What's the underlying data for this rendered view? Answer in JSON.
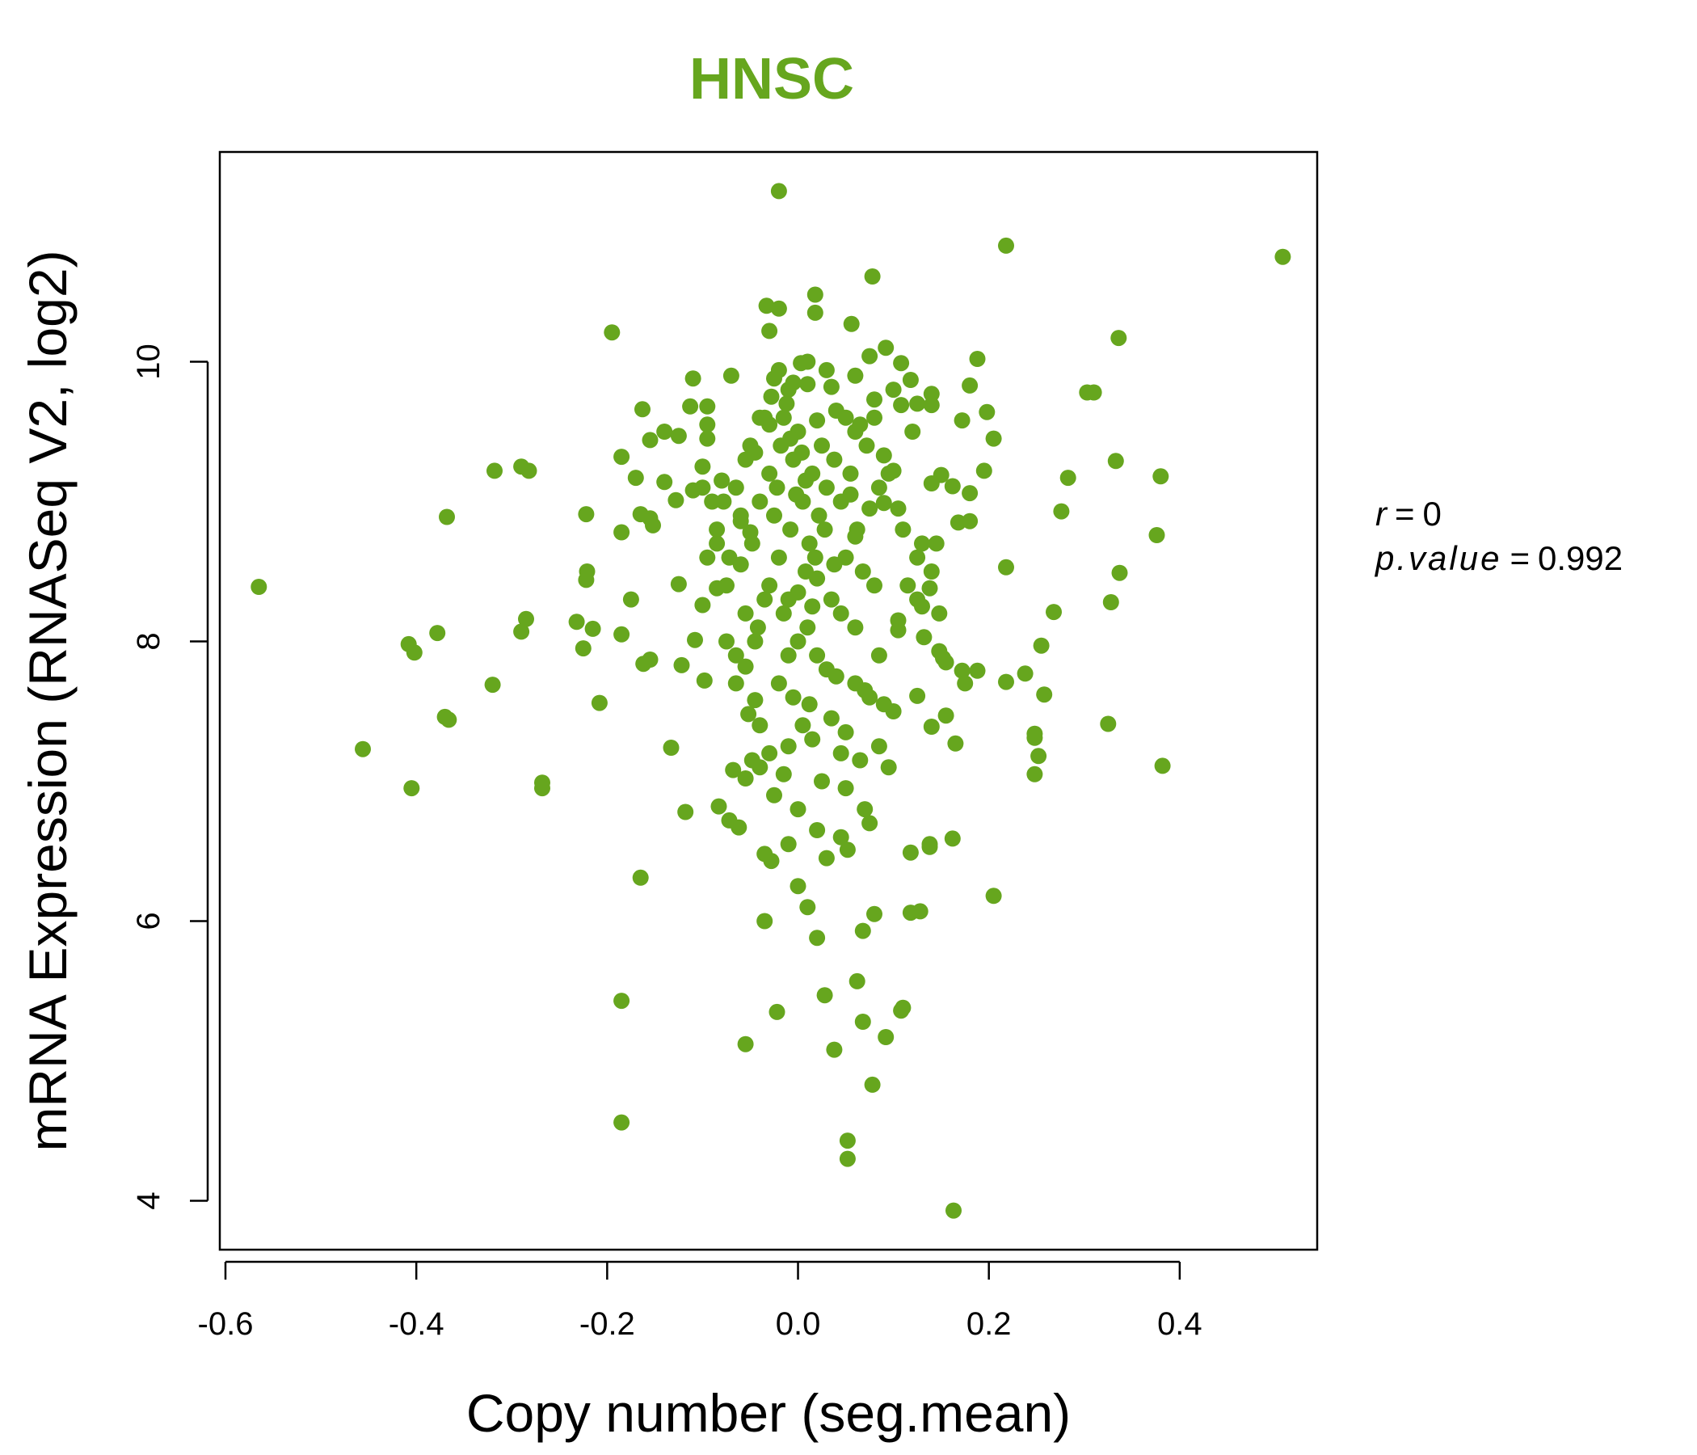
{
  "chart_data": {
    "type": "scatter",
    "title": "HNSC",
    "xlabel": "Copy number (seg.mean)",
    "ylabel": "mRNA Expression (RNASeq V2, log2)",
    "xlim": [
      -0.6,
      0.55
    ],
    "ylim": [
      3.65,
      11.5
    ],
    "xticks": [
      -0.6,
      -0.4,
      -0.2,
      0.0,
      0.2,
      0.4
    ],
    "xtick_labels": [
      "-0.6",
      "-0.4",
      "-0.2",
      "0.0",
      "0.2",
      "0.4"
    ],
    "yticks": [
      4,
      6,
      8,
      10
    ],
    "ytick_labels": [
      "4",
      "6",
      "8",
      "10"
    ],
    "grid": false,
    "colors": {
      "points": "#66a61e",
      "title": "#66a61e",
      "axis": "#000000"
    },
    "annotations": {
      "r_label": "r",
      "r_value": "0",
      "p_label": "p.value",
      "p_value": "0.992",
      "equals": "="
    },
    "series": [
      {
        "points": [
          [
            -0.02,
            11.22
          ],
          [
            0.218,
            10.83
          ],
          [
            0.508,
            10.75
          ],
          [
            0.078,
            10.61
          ],
          [
            -0.033,
            10.4
          ],
          [
            -0.02,
            10.38
          ],
          [
            0.018,
            10.48
          ],
          [
            0.018,
            10.35
          ],
          [
            0.056,
            10.27
          ],
          [
            -0.195,
            10.21
          ],
          [
            -0.03,
            10.22
          ],
          [
            0.336,
            10.17
          ],
          [
            0.092,
            10.1
          ],
          [
            0.075,
            10.04
          ],
          [
            0.188,
            10.02
          ],
          [
            -0.02,
            9.94
          ],
          [
            0.003,
            9.99
          ],
          [
            0.03,
            9.94
          ],
          [
            0.108,
            9.99
          ],
          [
            -0.11,
            9.88
          ],
          [
            -0.07,
            9.9
          ],
          [
            -0.025,
            9.88
          ],
          [
            0.06,
            9.9
          ],
          [
            0.118,
            9.87
          ],
          [
            0.18,
            9.83
          ],
          [
            0.31,
            9.78
          ],
          [
            0.303,
            9.78
          ],
          [
            0.14,
            9.77
          ],
          [
            -0.113,
            9.68
          ],
          [
            -0.095,
            9.68
          ],
          [
            -0.01,
            9.8
          ],
          [
            0.01,
            9.84
          ],
          [
            0.035,
            9.82
          ],
          [
            0.08,
            9.73
          ],
          [
            0.108,
            9.69
          ],
          [
            0.125,
            9.7
          ],
          [
            0.14,
            9.69
          ],
          [
            0.198,
            9.64
          ],
          [
            -0.163,
            9.66
          ],
          [
            -0.04,
            9.6
          ],
          [
            0.02,
            9.58
          ],
          [
            0.05,
            9.6
          ],
          [
            0.172,
            9.58
          ],
          [
            -0.095,
            9.55
          ],
          [
            0.08,
            9.6
          ],
          [
            -0.14,
            9.5
          ],
          [
            -0.155,
            9.44
          ],
          [
            -0.125,
            9.47
          ],
          [
            -0.095,
            9.45
          ],
          [
            0.06,
            9.5
          ],
          [
            0.205,
            9.45
          ],
          [
            -0.185,
            9.32
          ],
          [
            -0.05,
            9.4
          ],
          [
            0.09,
            9.33
          ],
          [
            0.333,
            9.29
          ],
          [
            -0.318,
            9.22
          ],
          [
            -0.29,
            9.25
          ],
          [
            -0.282,
            9.22
          ],
          [
            -0.17,
            9.17
          ],
          [
            0.1,
            9.22
          ],
          [
            0.15,
            9.19
          ],
          [
            0.195,
            9.22
          ],
          [
            0.283,
            9.17
          ],
          [
            0.38,
            9.18
          ],
          [
            -0.14,
            9.14
          ],
          [
            -0.11,
            9.08
          ],
          [
            -0.1,
            9.1
          ],
          [
            -0.08,
            9.15
          ],
          [
            0.14,
            9.13
          ],
          [
            0.18,
            9.06
          ],
          [
            0.162,
            9.11
          ],
          [
            -0.128,
            9.01
          ],
          [
            -0.368,
            8.89
          ],
          [
            -0.222,
            8.91
          ],
          [
            -0.165,
            8.91
          ],
          [
            -0.155,
            8.88
          ],
          [
            -0.152,
            8.83
          ],
          [
            -0.06,
            8.86
          ],
          [
            0.09,
            8.99
          ],
          [
            0.105,
            8.95
          ],
          [
            0.168,
            8.85
          ],
          [
            0.18,
            8.86
          ],
          [
            0.276,
            8.93
          ],
          [
            -0.185,
            8.78
          ],
          [
            -0.05,
            8.78
          ],
          [
            0.06,
            8.75
          ],
          [
            0.13,
            8.7
          ],
          [
            0.145,
            8.7
          ],
          [
            0.376,
            8.76
          ],
          [
            -0.085,
            8.7
          ],
          [
            -0.565,
            8.39
          ],
          [
            -0.222,
            8.44
          ],
          [
            -0.221,
            8.5
          ],
          [
            -0.125,
            8.41
          ],
          [
            -0.085,
            8.38
          ],
          [
            0.138,
            8.38
          ],
          [
            0.218,
            8.53
          ],
          [
            0.337,
            8.49
          ],
          [
            -0.175,
            8.3
          ],
          [
            0.125,
            8.3
          ],
          [
            0.328,
            8.28
          ],
          [
            -0.1,
            8.26
          ],
          [
            0.268,
            8.21
          ],
          [
            -0.285,
            8.16
          ],
          [
            -0.232,
            8.14
          ],
          [
            -0.215,
            8.09
          ],
          [
            -0.29,
            8.07
          ],
          [
            -0.378,
            8.06
          ],
          [
            -0.185,
            8.05
          ],
          [
            -0.108,
            8.01
          ],
          [
            -0.075,
            8.0
          ],
          [
            0.105,
            8.08
          ],
          [
            0.132,
            8.03
          ],
          [
            -0.408,
            7.98
          ],
          [
            -0.402,
            7.92
          ],
          [
            -0.225,
            7.95
          ],
          [
            0.148,
            7.93
          ],
          [
            0.152,
            7.88
          ],
          [
            0.155,
            7.85
          ],
          [
            0.255,
            7.97
          ],
          [
            -0.155,
            7.87
          ],
          [
            -0.162,
            7.84
          ],
          [
            -0.122,
            7.83
          ],
          [
            -0.055,
            7.82
          ],
          [
            0.172,
            7.79
          ],
          [
            0.188,
            7.79
          ],
          [
            0.238,
            7.77
          ],
          [
            0.175,
            7.7
          ],
          [
            0.218,
            7.71
          ],
          [
            -0.098,
            7.72
          ],
          [
            -0.065,
            7.7
          ],
          [
            -0.32,
            7.69
          ],
          [
            0.258,
            7.62
          ],
          [
            -0.208,
            7.56
          ],
          [
            -0.045,
            7.58
          ],
          [
            0.125,
            7.61
          ],
          [
            -0.37,
            7.46
          ],
          [
            -0.366,
            7.44
          ],
          [
            -0.052,
            7.48
          ],
          [
            0.155,
            7.47
          ],
          [
            0.14,
            7.39
          ],
          [
            0.325,
            7.41
          ],
          [
            0.248,
            7.34
          ],
          [
            0.248,
            7.31
          ],
          [
            -0.133,
            7.24
          ],
          [
            -0.456,
            7.23
          ],
          [
            0.165,
            7.27
          ],
          [
            0.252,
            7.18
          ],
          [
            -0.048,
            7.15
          ],
          [
            -0.04,
            7.1
          ],
          [
            -0.068,
            7.08
          ],
          [
            -0.055,
            7.02
          ],
          [
            0.382,
            7.11
          ],
          [
            0.248,
            7.05
          ],
          [
            -0.268,
            6.99
          ],
          [
            -0.268,
            6.95
          ],
          [
            -0.405,
            6.95
          ],
          [
            -0.083,
            6.82
          ],
          [
            -0.118,
            6.78
          ],
          [
            -0.072,
            6.72
          ],
          [
            -0.062,
            6.67
          ],
          [
            0.162,
            6.59
          ],
          [
            0.138,
            6.53
          ],
          [
            0.138,
            6.55
          ],
          [
            0.118,
            6.49
          ],
          [
            -0.035,
            6.48
          ],
          [
            -0.028,
            6.43
          ],
          [
            0.052,
            6.51
          ],
          [
            -0.165,
            6.31
          ],
          [
            0.205,
            6.18
          ],
          [
            0.118,
            6.06
          ],
          [
            0.128,
            6.07
          ],
          [
            -0.035,
            6.0
          ],
          [
            0.02,
            5.88
          ],
          [
            0.068,
            5.93
          ],
          [
            0.062,
            5.57
          ],
          [
            -0.185,
            5.43
          ],
          [
            0.028,
            5.47
          ],
          [
            0.11,
            5.38
          ],
          [
            0.108,
            5.36
          ],
          [
            -0.022,
            5.35
          ],
          [
            0.068,
            5.28
          ],
          [
            0.092,
            5.17
          ],
          [
            -0.055,
            5.12
          ],
          [
            0.038,
            5.08
          ],
          [
            0.078,
            4.83
          ],
          [
            -0.185,
            4.56
          ],
          [
            0.052,
            4.43
          ],
          [
            0.052,
            4.3
          ],
          [
            0.163,
            3.93
          ],
          [
            -0.022,
            9.1
          ],
          [
            -0.015,
            9.6
          ],
          [
            -0.005,
            9.3
          ],
          [
            0.005,
            9.0
          ],
          [
            0.012,
            8.7
          ],
          [
            -0.03,
            9.2
          ],
          [
            0.025,
            9.4
          ],
          [
            -0.008,
            8.8
          ],
          [
            0.0,
            9.5
          ],
          [
            0.015,
            9.2
          ],
          [
            -0.025,
            8.9
          ],
          [
            0.03,
            9.1
          ],
          [
            -0.012,
            9.7
          ],
          [
            0.008,
            8.5
          ],
          [
            -0.018,
            9.4
          ],
          [
            0.022,
            8.9
          ],
          [
            -0.035,
            9.6
          ],
          [
            0.038,
            9.3
          ],
          [
            -0.002,
            9.05
          ],
          [
            0.004,
            9.35
          ],
          [
            -0.028,
            9.75
          ],
          [
            0.018,
            8.6
          ],
          [
            -0.01,
            8.3
          ],
          [
            0.028,
            8.8
          ],
          [
            -0.04,
            9.0
          ],
          [
            0.045,
            9.0
          ],
          [
            -0.048,
            8.7
          ],
          [
            0.05,
            8.6
          ],
          [
            -0.055,
            9.3
          ],
          [
            0.055,
            9.2
          ],
          [
            -0.06,
            8.9
          ],
          [
            0.062,
            8.8
          ],
          [
            -0.065,
            9.1
          ],
          [
            0.068,
            8.5
          ],
          [
            -0.072,
            8.6
          ],
          [
            0.072,
            9.4
          ],
          [
            -0.078,
            9.0
          ],
          [
            0.08,
            8.4
          ],
          [
            -0.085,
            8.8
          ],
          [
            0.085,
            9.1
          ],
          [
            -0.015,
            8.2
          ],
          [
            0.01,
            8.1
          ],
          [
            -0.03,
            8.4
          ],
          [
            0.035,
            8.3
          ],
          [
            0.0,
            8.0
          ],
          [
            -0.042,
            8.1
          ],
          [
            0.045,
            8.2
          ],
          [
            0.02,
            7.9
          ],
          [
            -0.01,
            7.9
          ],
          [
            0.03,
            7.8
          ],
          [
            -0.005,
            7.6
          ],
          [
            0.012,
            7.55
          ],
          [
            0.04,
            7.75
          ],
          [
            -0.02,
            7.7
          ],
          [
            0.06,
            7.7
          ],
          [
            0.075,
            7.6
          ],
          [
            0.09,
            7.55
          ],
          [
            0.1,
            7.5
          ],
          [
            0.035,
            7.45
          ],
          [
            0.015,
            7.3
          ],
          [
            -0.01,
            7.25
          ],
          [
            0.045,
            7.2
          ],
          [
            0.065,
            7.15
          ],
          [
            0.085,
            7.25
          ],
          [
            0.025,
            7.0
          ],
          [
            0.05,
            6.95
          ],
          [
            0.07,
            6.8
          ],
          [
            0.095,
            7.1
          ],
          [
            0.0,
            6.8
          ],
          [
            0.02,
            6.65
          ],
          [
            0.03,
            6.45
          ],
          [
            0.045,
            6.6
          ],
          [
            0.075,
            6.7
          ],
          [
            0.0,
            6.25
          ],
          [
            0.01,
            6.1
          ],
          [
            0.08,
            6.05
          ],
          [
            -0.01,
            6.55
          ],
          [
            0.1,
            9.8
          ],
          [
            0.12,
            9.5
          ],
          [
            0.095,
            9.2
          ],
          [
            0.11,
            8.8
          ],
          [
            0.125,
            8.6
          ],
          [
            0.115,
            8.4
          ],
          [
            -0.1,
            9.25
          ],
          [
            -0.09,
            9.0
          ],
          [
            -0.095,
            8.6
          ],
          [
            -0.075,
            8.4
          ],
          [
            -0.055,
            8.2
          ],
          [
            -0.045,
            8.0
          ],
          [
            -0.065,
            7.9
          ],
          [
            -0.04,
            7.4
          ],
          [
            -0.03,
            7.2
          ],
          [
            -0.015,
            7.05
          ],
          [
            -0.025,
            6.9
          ],
          [
            0.005,
            7.4
          ],
          [
            0.05,
            7.35
          ],
          [
            0.07,
            7.65
          ],
          [
            0.085,
            7.9
          ],
          [
            0.06,
            8.1
          ],
          [
            0.105,
            8.15
          ],
          [
            0.13,
            8.25
          ],
          [
            0.14,
            8.5
          ],
          [
            0.148,
            8.2
          ],
          [
            -0.005,
            9.85
          ],
          [
            0.01,
            10.0
          ],
          [
            -0.03,
            9.55
          ],
          [
            0.04,
            9.65
          ],
          [
            0.065,
            9.55
          ],
          [
            -0.045,
            9.35
          ],
          [
            0.055,
            9.05
          ],
          [
            0.075,
            8.95
          ],
          [
            -0.06,
            8.55
          ],
          [
            0.02,
            8.45
          ],
          [
            -0.02,
            8.6
          ],
          [
            0.0,
            8.35
          ],
          [
            0.015,
            8.25
          ],
          [
            -0.035,
            8.3
          ],
          [
            0.038,
            8.55
          ],
          [
            -0.008,
            9.45
          ],
          [
            0.008,
            9.15
          ]
        ]
      }
    ]
  }
}
